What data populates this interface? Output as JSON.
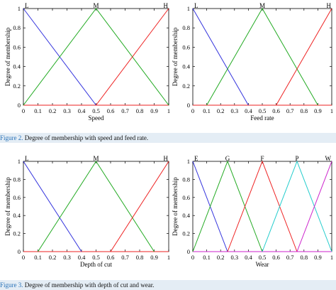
{
  "captions": [
    {
      "label": "Figure 2.",
      "text": " Degree of membership with speed and feed rate."
    },
    {
      "label": "Figure 3.",
      "text": " Degree of membership with depth of cut and wear."
    }
  ],
  "chart_data": [
    {
      "type": "line",
      "xlabel": "Speed",
      "ylabel": "Degree of membership",
      "xlim": [
        0,
        1
      ],
      "ylim": [
        0,
        1
      ],
      "xticks": [
        "0",
        "0.1",
        "0.2",
        "0.3",
        "0.4",
        "0.5",
        "0.6",
        "0.7",
        "0.8",
        "0.9",
        "1"
      ],
      "yticks": [
        "0",
        "0.2",
        "0.4",
        "0.6",
        "0.8",
        "1"
      ],
      "grid": false,
      "series": [
        {
          "name": "L",
          "color": "#3333dd",
          "x": [
            0,
            0.5
          ],
          "y": [
            1,
            0
          ]
        },
        {
          "name": "M",
          "color": "#22aa22",
          "x": [
            0,
            0.5,
            1
          ],
          "y": [
            0,
            1,
            0
          ]
        },
        {
          "name": "H",
          "color": "#ee2222",
          "x": [
            0.5,
            1
          ],
          "y": [
            0,
            1
          ]
        }
      ],
      "baseline": {
        "color": "#ee2222",
        "x": [
          0,
          1
        ],
        "y": [
          0,
          0
        ]
      }
    },
    {
      "type": "line",
      "xlabel": "Feed rate",
      "ylabel": "Degree of membership",
      "xlim": [
        0,
        1
      ],
      "ylim": [
        0,
        1
      ],
      "xticks": [
        "0",
        "0.1",
        "0.2",
        "0.3",
        "0.4",
        "0.5",
        "0.6",
        "0.7",
        "0.8",
        "0.9",
        "1"
      ],
      "yticks": [
        "0",
        "0.2",
        "0.4",
        "0.6",
        "0.8",
        "1"
      ],
      "grid": false,
      "series": [
        {
          "name": "L",
          "color": "#3333dd",
          "x": [
            0,
            0.4
          ],
          "y": [
            1,
            0
          ]
        },
        {
          "name": "M",
          "color": "#22aa22",
          "x": [
            0.1,
            0.5,
            0.9
          ],
          "y": [
            0,
            1,
            0
          ]
        },
        {
          "name": "H",
          "color": "#ee2222",
          "x": [
            0.6,
            1
          ],
          "y": [
            0,
            1
          ]
        }
      ],
      "baseline": {
        "color": "#ee2222",
        "x": [
          0,
          1
        ],
        "y": [
          0,
          0
        ]
      }
    },
    {
      "type": "line",
      "xlabel": "Depth of cut",
      "ylabel": "Degree of membership",
      "xlim": [
        0,
        1
      ],
      "ylim": [
        0,
        1
      ],
      "xticks": [
        "0",
        "0.1",
        "0.2",
        "0.3",
        "0.4",
        "0.5",
        "0.6",
        "0.7",
        "0.8",
        "0.9",
        "1"
      ],
      "yticks": [
        "0",
        "0.2",
        "0.4",
        "0.6",
        "0.8",
        "1"
      ],
      "grid": false,
      "series": [
        {
          "name": "L",
          "color": "#3333dd",
          "x": [
            0,
            0.4
          ],
          "y": [
            1,
            0
          ]
        },
        {
          "name": "M",
          "color": "#22aa22",
          "x": [
            0.1,
            0.5,
            0.9
          ],
          "y": [
            0,
            1,
            0
          ]
        },
        {
          "name": "H",
          "color": "#ee2222",
          "x": [
            0.6,
            1
          ],
          "y": [
            0,
            1
          ]
        }
      ],
      "baseline": {
        "color": "#ee2222",
        "x": [
          0,
          1
        ],
        "y": [
          0,
          0
        ]
      }
    },
    {
      "type": "line",
      "xlabel": "Wear",
      "ylabel": "Degree of membership",
      "xlim": [
        0,
        1
      ],
      "ylim": [
        0,
        1
      ],
      "xticks": [
        "0",
        "0.1",
        "0.2",
        "0.3",
        "0.4",
        "0.5",
        "0.6",
        "0.7",
        "0.8",
        "0.9",
        "1"
      ],
      "yticks": [
        "0",
        "0.2",
        "0.4",
        "0.6",
        "0.8",
        "1"
      ],
      "grid": false,
      "series": [
        {
          "name": "E",
          "color": "#3333dd",
          "x": [
            0,
            0.25
          ],
          "y": [
            1,
            0
          ]
        },
        {
          "name": "G",
          "color": "#22aa22",
          "x": [
            0,
            0.25,
            0.5
          ],
          "y": [
            0,
            1,
            0
          ]
        },
        {
          "name": "F",
          "color": "#ee2222",
          "x": [
            0.25,
            0.5,
            0.75
          ],
          "y": [
            0,
            1,
            0
          ]
        },
        {
          "name": "P",
          "color": "#22cccc",
          "x": [
            0.5,
            0.75,
            1
          ],
          "y": [
            0,
            1,
            0
          ]
        },
        {
          "name": "W",
          "color": "#cc22cc",
          "x": [
            0.75,
            1
          ],
          "y": [
            0,
            1
          ]
        }
      ],
      "baseline": {
        "color": "#cc22cc",
        "x": [
          0,
          1
        ],
        "y": [
          0,
          0
        ]
      }
    }
  ]
}
